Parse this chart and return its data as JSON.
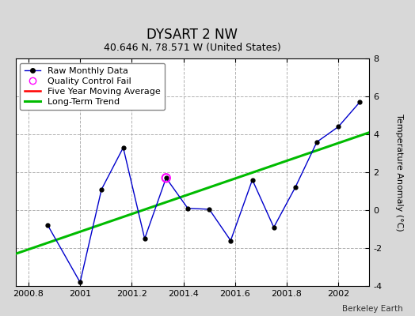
{
  "title": "DYSART 2 NW",
  "subtitle": "40.646 N, 78.571 W (United States)",
  "credit": "Berkeley Earth",
  "xlim": [
    2000.75,
    2002.12
  ],
  "ylim": [
    -4,
    8
  ],
  "yticks": [
    -4,
    -2,
    0,
    2,
    4,
    6,
    8
  ],
  "xticks": [
    2000.8,
    2001.0,
    2001.2,
    2001.4,
    2001.6,
    2001.8,
    2002.0
  ],
  "raw_x": [
    2000.875,
    2001.0,
    2001.083,
    2001.167,
    2001.25,
    2001.333,
    2001.417,
    2001.5,
    2001.583,
    2001.667,
    2001.75,
    2001.833,
    2001.917,
    2002.0,
    2002.083
  ],
  "raw_y": [
    -0.8,
    -3.8,
    1.1,
    3.3,
    -1.5,
    1.7,
    0.1,
    0.05,
    -1.6,
    1.6,
    -0.9,
    1.2,
    3.6,
    4.4,
    5.7
  ],
  "qc_fail_x": [
    2001.333
  ],
  "qc_fail_y": [
    1.7
  ],
  "trend_x": [
    2000.75,
    2002.12
  ],
  "trend_y": [
    -2.3,
    4.1
  ],
  "raw_color": "#0000cc",
  "raw_marker_color": "#000000",
  "trend_color": "#00bb00",
  "five_year_color": "#ff0000",
  "qc_color": "#ff00ff",
  "bg_color": "#d8d8d8",
  "plot_bg_color": "#ffffff",
  "grid_color": "#b0b0b0",
  "ylabel": "Temperature Anomaly (°C)",
  "title_fontsize": 12,
  "subtitle_fontsize": 9,
  "label_fontsize": 8,
  "tick_fontsize": 8,
  "legend_fontsize": 8
}
